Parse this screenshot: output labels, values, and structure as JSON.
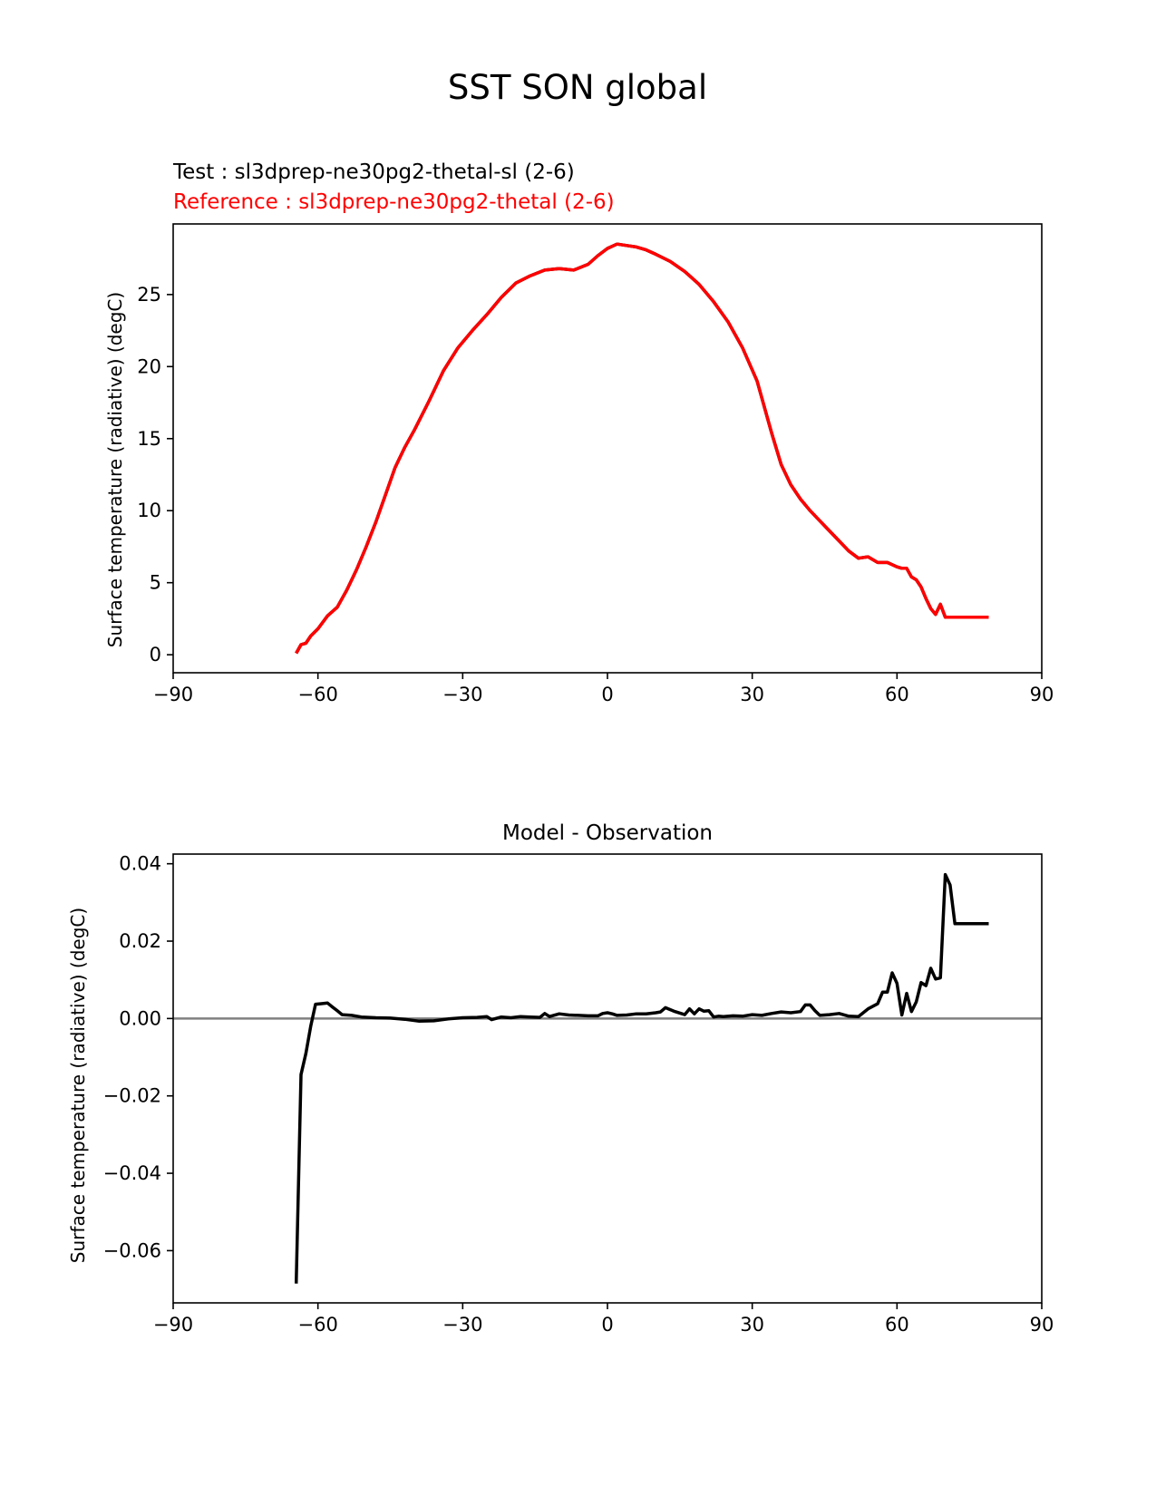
{
  "figure": {
    "title": "SST SON global"
  },
  "chart_data": [
    {
      "type": "line",
      "title_test": "Test : sl3dprep-ne30pg2-thetal-sl (2-6)",
      "title_ref": "Reference : sl3dprep-ne30pg2-thetal (2-6)",
      "xlabel": "",
      "ylabel": "Surface temperature (radiative) (degC)",
      "xlim": [
        -90,
        90
      ],
      "ylim": [
        -1.25,
        29.9
      ],
      "xticks": [
        -90,
        -60,
        -30,
        0,
        30,
        60,
        90
      ],
      "yticks": [
        0,
        5,
        10,
        15,
        20,
        25
      ],
      "grid": false,
      "colors": {
        "test": "#000000",
        "reference": "#ff0000"
      },
      "series": [
        {
          "name": "Test",
          "color": "#000000",
          "x": [
            -64.5,
            -63.5,
            -62.5,
            -61.5,
            -60,
            -58,
            -56,
            -54,
            -52,
            -50,
            -48,
            -46,
            -44,
            -42,
            -40,
            -37,
            -34,
            -31,
            -28,
            -25,
            -22,
            -19,
            -16,
            -13,
            -10,
            -7,
            -4,
            -2,
            0,
            2,
            4,
            6,
            8,
            10,
            13,
            16,
            19,
            22,
            25,
            28,
            31,
            34,
            36,
            38,
            40,
            42,
            44,
            46,
            48,
            50,
            52,
            54,
            56,
            58,
            60,
            61,
            62,
            63,
            64,
            65,
            66,
            67,
            68,
            69,
            70,
            71,
            72,
            73,
            74,
            75,
            76,
            77,
            78,
            79
          ],
          "y": [
            0.1,
            0.7,
            0.8,
            1.3,
            1.8,
            2.7,
            3.3,
            4.5,
            5.9,
            7.5,
            9.2,
            11.1,
            13.0,
            14.4,
            15.6,
            17.6,
            19.7,
            21.3,
            22.5,
            23.6,
            24.8,
            25.8,
            26.3,
            26.7,
            26.8,
            26.7,
            27.1,
            27.7,
            28.2,
            28.5,
            28.4,
            28.3,
            28.1,
            27.8,
            27.3,
            26.6,
            25.7,
            24.5,
            23.1,
            21.3,
            19.0,
            15.4,
            13.2,
            11.8,
            10.8,
            10.0,
            9.3,
            8.6,
            7.9,
            7.2,
            6.7,
            6.8,
            6.4,
            6.4,
            6.1,
            6.0,
            6.0,
            5.4,
            5.2,
            4.7,
            3.9,
            3.2,
            2.8,
            3.5,
            2.6,
            2.6,
            2.6,
            2.6,
            2.6,
            2.6,
            2.6,
            2.6,
            2.6,
            2.6
          ]
        },
        {
          "name": "Reference",
          "color": "#ff0000",
          "x": [
            -64.5,
            -63.5,
            -62.5,
            -61.5,
            -60,
            -58,
            -56,
            -54,
            -52,
            -50,
            -48,
            -46,
            -44,
            -42,
            -40,
            -37,
            -34,
            -31,
            -28,
            -25,
            -22,
            -19,
            -16,
            -13,
            -10,
            -7,
            -4,
            -2,
            0,
            2,
            4,
            6,
            8,
            10,
            13,
            16,
            19,
            22,
            25,
            28,
            31,
            34,
            36,
            38,
            40,
            42,
            44,
            46,
            48,
            50,
            52,
            54,
            56,
            58,
            60,
            61,
            62,
            63,
            64,
            65,
            66,
            67,
            68,
            69,
            70,
            71,
            72,
            73,
            74,
            75,
            76,
            77,
            78,
            79
          ],
          "y": [
            0.1,
            0.7,
            0.8,
            1.3,
            1.8,
            2.7,
            3.3,
            4.5,
            5.9,
            7.5,
            9.2,
            11.1,
            13.0,
            14.4,
            15.6,
            17.6,
            19.7,
            21.3,
            22.5,
            23.6,
            24.8,
            25.8,
            26.3,
            26.7,
            26.8,
            26.7,
            27.1,
            27.7,
            28.2,
            28.5,
            28.4,
            28.3,
            28.1,
            27.8,
            27.3,
            26.6,
            25.7,
            24.5,
            23.1,
            21.3,
            19.0,
            15.4,
            13.2,
            11.8,
            10.8,
            10.0,
            9.3,
            8.6,
            7.9,
            7.2,
            6.7,
            6.8,
            6.4,
            6.4,
            6.1,
            6.0,
            6.0,
            5.4,
            5.2,
            4.7,
            3.9,
            3.2,
            2.8,
            3.5,
            2.6,
            2.6,
            2.6,
            2.6,
            2.6,
            2.6,
            2.6,
            2.6,
            2.6,
            2.6
          ]
        }
      ]
    },
    {
      "type": "line",
      "title": "Model - Observation",
      "xlabel": "",
      "ylabel": "Surface temperature (radiative) (degC)",
      "xlim": [
        -90,
        90
      ],
      "ylim": [
        -0.0735,
        0.0425
      ],
      "xticks": [
        -90,
        -60,
        -30,
        0,
        30,
        60,
        90
      ],
      "yticks": [
        0.04,
        0.02,
        0.0,
        -0.02,
        -0.04,
        -0.06
      ],
      "ytick_labels": [
        "0.04",
        "0.02",
        "0.00",
        "−0.02",
        "−0.04",
        "−0.06"
      ],
      "grid": false,
      "zero_line_color": "#808080",
      "colors": {
        "diff": "#000000"
      },
      "series": [
        {
          "name": "",
          "color": "#000000",
          "x": [
            -64.5,
            -63.5,
            -62.5,
            -61.5,
            -60.5,
            -59.5,
            -58,
            -57,
            -56,
            -55,
            -53,
            -51,
            -48,
            -45,
            -42,
            -39,
            -36,
            -33,
            -30,
            -27,
            -25,
            -24,
            -22,
            -20,
            -18,
            -16,
            -14,
            -13,
            -12,
            -10,
            -8,
            -6,
            -4,
            -2,
            -1,
            0,
            1,
            2,
            4,
            6,
            8,
            10,
            11,
            12,
            14,
            16,
            17,
            18,
            19,
            20,
            21,
            22,
            23,
            24,
            26,
            28,
            30,
            32,
            34,
            36,
            38,
            40,
            41,
            42,
            43,
            44,
            46,
            48,
            50,
            52,
            54,
            56,
            57,
            58,
            59,
            60,
            61,
            62,
            63,
            64,
            65,
            66,
            67,
            68,
            69,
            70,
            71,
            72,
            73,
            74,
            75,
            76,
            77,
            78,
            79
          ],
          "y": [
            -0.0685,
            -0.0145,
            -0.009,
            -0.002,
            0.0037,
            0.0038,
            0.004,
            0.003,
            0.002,
            0.001,
            0.0008,
            0.0004,
            0.0002,
            0.0001,
            -0.0002,
            -0.0007,
            -0.0006,
            -0.0001,
            0.0002,
            0.0003,
            0.0005,
            -0.0003,
            0.0004,
            0.0002,
            0.0005,
            0.0004,
            0.0003,
            0.0013,
            0.0005,
            0.0012,
            0.0009,
            0.0008,
            0.0007,
            0.0007,
            0.0013,
            0.0015,
            0.0012,
            0.0008,
            0.0009,
            0.0012,
            0.0012,
            0.0015,
            0.0017,
            0.0028,
            0.0018,
            0.001,
            0.0025,
            0.0012,
            0.0025,
            0.0019,
            0.002,
            0.0004,
            0.0006,
            0.0005,
            0.0007,
            0.0006,
            0.001,
            0.0008,
            0.0013,
            0.0017,
            0.0015,
            0.0018,
            0.0035,
            0.0035,
            0.002,
            0.0008,
            0.001,
            0.0013,
            0.0006,
            0.0005,
            0.0025,
            0.0038,
            0.0068,
            0.0068,
            0.0118,
            0.0091,
            0.0009,
            0.0065,
            0.0018,
            0.0043,
            0.0093,
            0.0085,
            0.013,
            0.0102,
            0.0105,
            0.0372,
            0.0345,
            0.0245,
            0.0245,
            0.0245,
            0.0245,
            0.0245,
            0.0245,
            0.0245,
            0.0245
          ]
        }
      ]
    }
  ]
}
